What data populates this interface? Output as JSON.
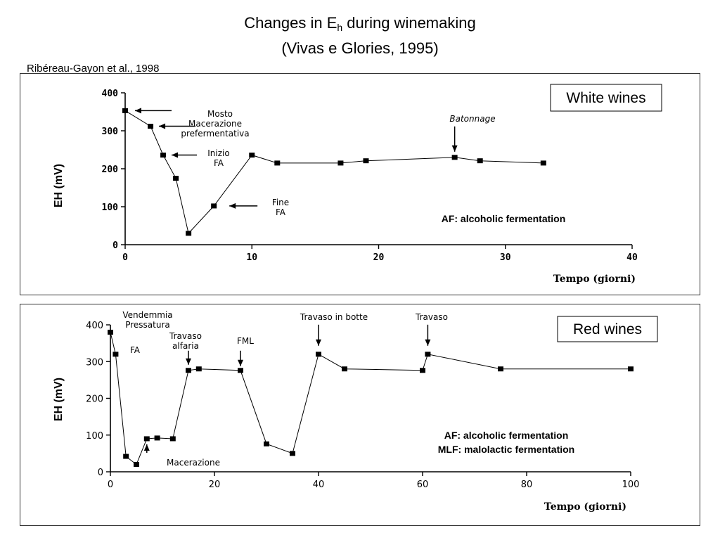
{
  "slide": {
    "title_main": "Changes in E",
    "title_sub": "h",
    "title_rest": " during winemaking",
    "title_line2": "(Vivas e Glories, 1995)",
    "citation": "Ribéreau-Gayon et al., 1998"
  },
  "chart_data": [
    {
      "type": "line",
      "title": "White wines",
      "xlabel": "Tempo (giorni)",
      "ylabel": "EH (mV)",
      "xlim": [
        0,
        40
      ],
      "ylim": [
        0,
        400
      ],
      "xticks": [
        0,
        10,
        20,
        30,
        40
      ],
      "yticks": [
        0,
        100,
        200,
        300,
        400
      ],
      "series": [
        {
          "x": [
            0,
            2,
            3,
            4,
            5,
            7,
            10,
            12,
            17,
            19,
            26,
            28,
            33
          ],
          "y": [
            353,
            312,
            236,
            175,
            30,
            102,
            236,
            215,
            215,
            221,
            230,
            221,
            215
          ]
        }
      ],
      "annotations": [
        {
          "lines": [
            "Mosto"
          ],
          "x": 0,
          "y": 353
        },
        {
          "lines": [
            "Macerazione",
            "prefermentativa"
          ],
          "x": 2,
          "y": 312
        },
        {
          "lines": [
            "Inizio",
            "FA"
          ],
          "x": 3,
          "y": 236
        },
        {
          "lines": [
            "Fine",
            "FA"
          ],
          "x": 7,
          "y": 102
        },
        {
          "lines": [
            "Batonnage"
          ],
          "x": 26,
          "y": 230
        }
      ],
      "note_lines": [
        "AF: alcoholic fermentation"
      ],
      "legend_placement": "top-right",
      "grid": false
    },
    {
      "type": "line",
      "title": "Red wines",
      "xlabel": "Tempo (giorni)",
      "ylabel": "EH (mV)",
      "xlim": [
        0,
        100
      ],
      "ylim": [
        0,
        400
      ],
      "xticks": [
        0,
        20,
        40,
        60,
        80,
        100
      ],
      "yticks": [
        0,
        100,
        200,
        300,
        400
      ],
      "series": [
        {
          "x": [
            0,
            1,
            3,
            5,
            7,
            9,
            12,
            15,
            17,
            25,
            30,
            35,
            40,
            45,
            60,
            61,
            75,
            100
          ],
          "y": [
            380,
            320,
            42,
            20,
            90,
            92,
            90,
            276,
            280,
            276,
            76,
            50,
            320,
            280,
            276,
            320,
            280,
            280
          ]
        }
      ],
      "annotations": [
        {
          "lines": [
            "Vendemmia",
            "Pressatura"
          ],
          "x": 0,
          "y": 380
        },
        {
          "lines": [
            "FA"
          ],
          "x": 1,
          "y": 320
        },
        {
          "lines": [
            "Travaso",
            "alfaria"
          ],
          "x": 15,
          "y": 276
        },
        {
          "lines": [
            "FML"
          ],
          "x": 25,
          "y": 276
        },
        {
          "lines": [
            "Travaso in botte"
          ],
          "x": 40,
          "y": 320
        },
        {
          "lines": [
            "Travaso"
          ],
          "x": 61,
          "y": 320
        },
        {
          "lines": [
            "Macerazione"
          ],
          "x": 7,
          "y": 90
        }
      ],
      "note_lines": [
        "AF: alcoholic fermentation",
        "MLF: malolactic fermentation"
      ],
      "legend_placement": "top-right",
      "grid": false
    }
  ]
}
